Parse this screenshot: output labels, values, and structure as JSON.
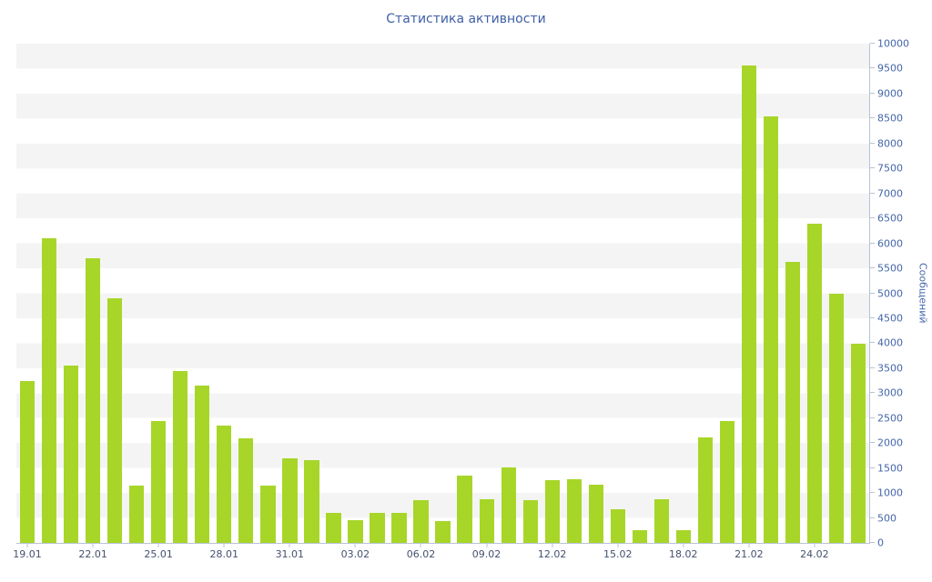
{
  "chart": {
    "title": "Статистика активности",
    "y_axis_title": "Сообщений",
    "colors": {
      "bar": "#a7d629",
      "axis_line": "#b7c4d4",
      "y_label": "#4466aa",
      "x_label": "#44506e",
      "title": "#3f5fa8",
      "band": "#f4f4f4"
    }
  },
  "chart_data": {
    "type": "bar",
    "title": "Статистика активности",
    "xlabel": "",
    "ylabel": "Сообщений",
    "ylim": [
      0,
      10000
    ],
    "y_tick_step": 500,
    "grid": "alternating-horizontal-bands",
    "legend": "none",
    "categories": [
      "19.01",
      "20.01",
      "21.01",
      "22.01",
      "23.01",
      "24.01",
      "25.01",
      "26.01",
      "27.01",
      "28.01",
      "29.01",
      "30.01",
      "31.01",
      "01.02",
      "02.02",
      "03.02",
      "04.02",
      "05.02",
      "06.02",
      "07.02",
      "08.02",
      "09.02",
      "10.02",
      "11.02",
      "12.02",
      "13.02",
      "14.02",
      "15.02",
      "16.02",
      "17.02",
      "18.02",
      "19.02",
      "20.02",
      "21.02",
      "22.02",
      "23.02",
      "24.02",
      "25.02",
      "26.02"
    ],
    "values": [
      3250,
      6100,
      3550,
      5700,
      4900,
      1150,
      2450,
      3450,
      3150,
      2350,
      2100,
      1150,
      1700,
      1650,
      600,
      450,
      600,
      600,
      850,
      430,
      1350,
      880,
      1520,
      850,
      1260,
      1280,
      1170,
      680,
      260,
      880,
      260,
      2120,
      2450,
      9570,
      8540,
      5630,
      6390,
      5000,
      3990
    ],
    "x_tick_labels": [
      "19.01",
      "22.01",
      "25.01",
      "28.01",
      "31.01",
      "03.02",
      "06.02",
      "09.02",
      "12.02",
      "15.02",
      "18.02",
      "21.02",
      "24.02"
    ]
  }
}
